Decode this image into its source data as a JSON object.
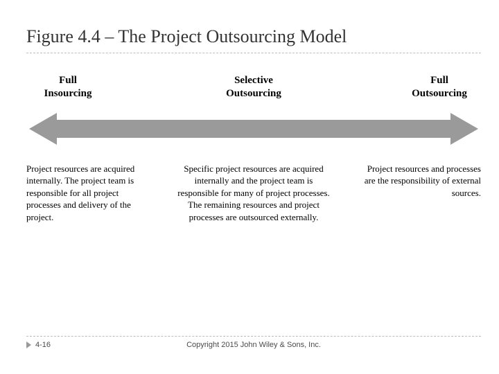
{
  "title": "Figure 4.4 – The Project Outsourcing Model",
  "continuum": {
    "arrow_color": "#9a9a9a",
    "labels": {
      "left": "Full\nInsourcing",
      "center": "Selective\nOutsourcing",
      "right": "Full\nOutsourcing"
    },
    "descriptions": {
      "left": "Project resources are acquired internally. The project team is responsible for all project processes and delivery of the project.",
      "center": "Specific project resources are acquired internally and the project team is responsible for many of project processes. The remaining resources and project processes are outsourced externally.",
      "right": "Project resources and processes are the responsibility of external sources."
    }
  },
  "footer": {
    "page": "4-16",
    "copyright": "Copyright 2015 John Wiley & Sons, Inc."
  },
  "colors": {
    "background": "#ffffff",
    "title_text": "#333333",
    "body_text": "#000000",
    "dash": "#bdbdbd",
    "footer_text": "#4a4a4a"
  }
}
